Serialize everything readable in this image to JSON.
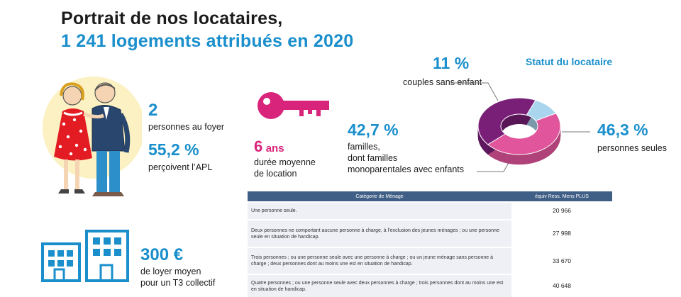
{
  "header": {
    "title_line1": "Portrait de nos locataires,",
    "title_line2": "1 241 logements attribués en 2020"
  },
  "stats": {
    "foyer_value": "2",
    "foyer_label": "personnes au foyer",
    "apl_value": "55,2 %",
    "apl_label": "perçoivent l’APL",
    "duree_value": "6",
    "duree_unit": "ans",
    "duree_label_line1": "durée moyenne",
    "duree_label_line2": "de location",
    "loyer_value": "300 €",
    "loyer_label_line1": "de loyer moyen",
    "loyer_label_line2": "pour un T3 collectif"
  },
  "statut": {
    "title": "Statut du locataire",
    "couples_value": "11 %",
    "couples_label": "couples sans enfant",
    "familles_value": "42,7 %",
    "familles_label_line1": "familles,",
    "familles_label_line2": "dont familles",
    "familles_label_line3": "monoparentales avec enfants",
    "seules_value": "46,3 %",
    "seules_label": "personnes seules"
  },
  "colors": {
    "blue": "#1a8fcc",
    "pink": "#d8247a",
    "purple": "#7a1f78",
    "light_blue": "#a9d5ee",
    "donut_pink": "#e0559b"
  },
  "icons": [
    "couple-illustration",
    "key-icon",
    "buildings-icon"
  ],
  "table": {
    "headers": [
      "Catégorie de Ménage",
      "équiv Ress. Mens PLUS"
    ],
    "rows": [
      {
        "category": "Une personne seule.",
        "value": "20 966"
      },
      {
        "category": "Deux personnes ne comportant aucune personne à charge, à l’exclusion des jeunes ménages ; ou une personne seule en situation de handicap.",
        "value": "27 998"
      },
      {
        "category": "Trois personnes ; ou une personne seule avec une personne à charge ; ou un jeune ménage sans personne à charge ; deux personnes dont au moins une est en situation de handicap.",
        "value": "33 670"
      },
      {
        "category": "Quatre personnes ; ou une personne seule avec deux personnes à charge ; trois personnes dont au moins une est en situation de handicap.",
        "value": "40 648"
      }
    ]
  },
  "chart_data": {
    "type": "pie",
    "title": "Statut du locataire",
    "categories": [
      "personnes seules",
      "familles, dont familles monoparentales avec enfants",
      "couples sans enfant"
    ],
    "values": [
      46.3,
      42.7,
      11
    ],
    "colors": [
      "#e0559b",
      "#7a1f78",
      "#a9d5ee"
    ],
    "style": "3d-donut"
  }
}
